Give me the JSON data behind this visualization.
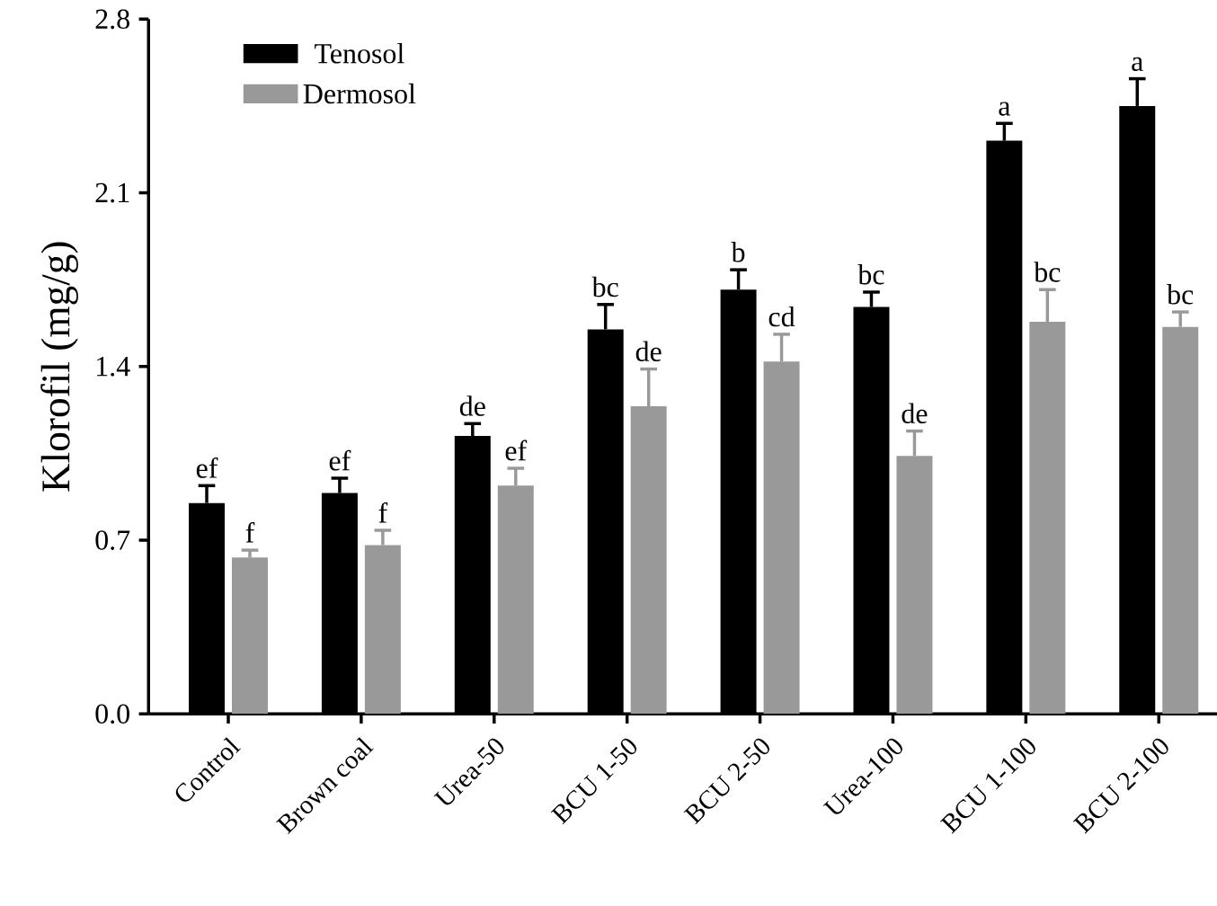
{
  "chart_data": {
    "type": "bar",
    "ylabel": "Klorofil (mg/g)",
    "categories": [
      "Control",
      "Brown coal",
      "Urea-50",
      "BCU 1-50",
      "BCU 2-50",
      "Urea-100",
      "BCU 1-100",
      "BCU 2-100"
    ],
    "series": [
      {
        "name": "Tenosol",
        "color": "#000000",
        "values": [
          0.85,
          0.89,
          1.12,
          1.55,
          1.71,
          1.64,
          2.31,
          2.45
        ],
        "errors": [
          0.07,
          0.06,
          0.05,
          0.1,
          0.08,
          0.06,
          0.07,
          0.11
        ]
      },
      {
        "name": "Dermosol",
        "color": "#999999",
        "values": [
          0.63,
          0.68,
          0.92,
          1.24,
          1.42,
          1.04,
          1.58,
          1.56
        ],
        "errors": [
          0.03,
          0.06,
          0.07,
          0.15,
          0.11,
          0.1,
          0.13,
          0.06
        ]
      }
    ],
    "ylim": [
      0,
      2.8
    ],
    "yticks": [
      {
        "value": 0,
        "label": "0.0"
      },
      0.7,
      1.4,
      2.1,
      2.8
    ],
    "legend": "top left",
    "grid": false,
    "annotations": [
      "ef",
      "f",
      "ef",
      "f",
      "de",
      "ef",
      "bc",
      "de",
      "b",
      "cd",
      "bc",
      "de",
      "a",
      "bc",
      "a",
      "bc"
    ]
  }
}
